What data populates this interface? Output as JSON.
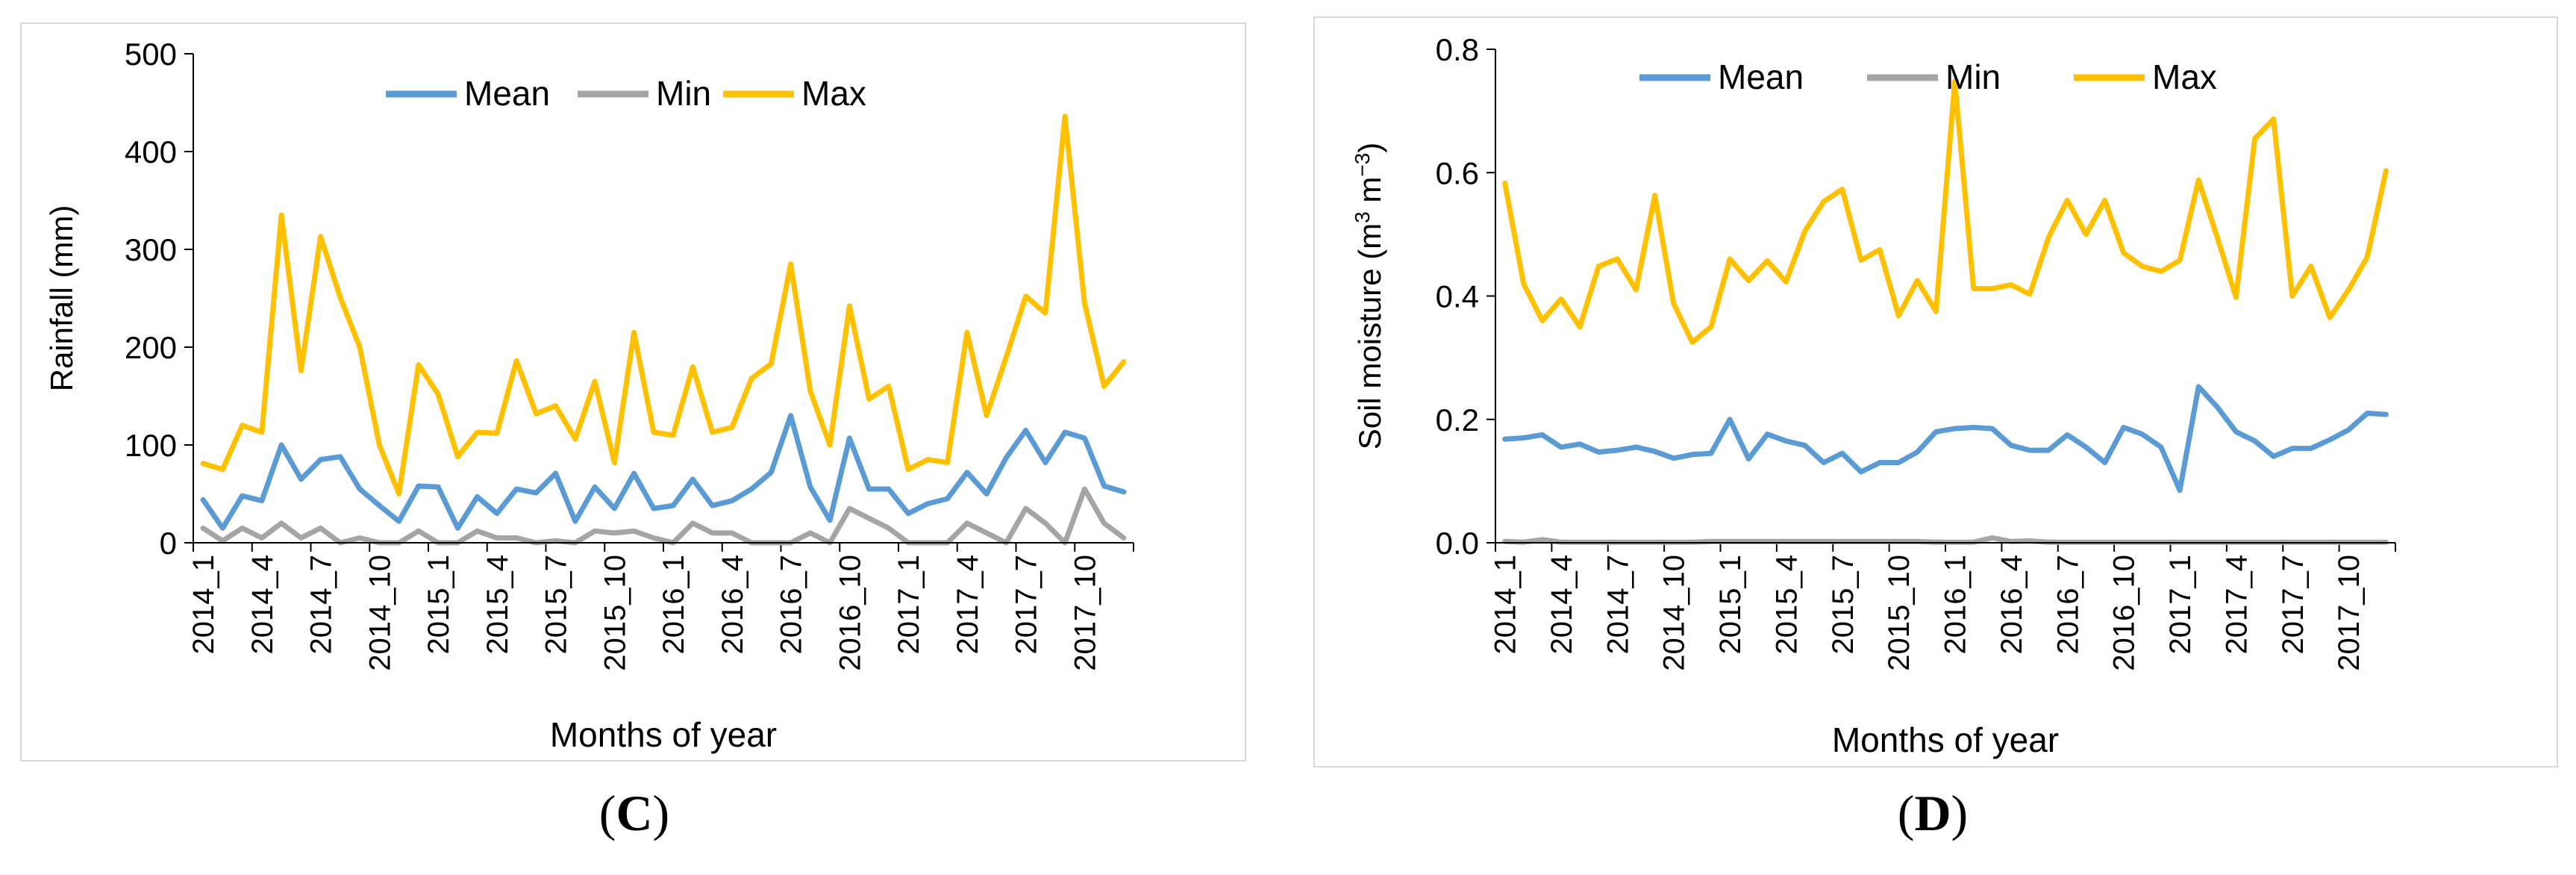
{
  "colors": {
    "mean": "#5B9BD5",
    "min": "#A5A5A5",
    "max": "#FFC000",
    "axis": "#000000"
  },
  "chart_data": [
    {
      "type": "line",
      "panel_caption": {
        "open": "(",
        "letter": "C",
        "close": ")"
      },
      "title": "",
      "xlabel": "Months of year",
      "ylabel": "Rainfall (mm)",
      "ylim": [
        0,
        500
      ],
      "yticks": [
        "0",
        "100",
        "200",
        "300",
        "400",
        "500"
      ],
      "grid": false,
      "legend_position": "top",
      "x_tick_labels": [
        "2014_1",
        "2014_4",
        "2014_7",
        "2014_10",
        "2015_1",
        "2015_4",
        "2015_7",
        "2015_10",
        "2016_1",
        "2016_4",
        "2016_7",
        "2016_10",
        "2017_1",
        "2017_4",
        "2017_7",
        "2017_10"
      ],
      "series": [
        {
          "name": "Mean",
          "color_key": "mean",
          "values": [
            44,
            15,
            48,
            43,
            100,
            65,
            85,
            88,
            55,
            38,
            22,
            58,
            57,
            15,
            47,
            30,
            55,
            51,
            71,
            22,
            57,
            35,
            71,
            35,
            38,
            65,
            38,
            43,
            55,
            72,
            130,
            57,
            23,
            107,
            55,
            55,
            30,
            40,
            45,
            72,
            50,
            87,
            115,
            82,
            113,
            107,
            58,
            52
          ]
        },
        {
          "name": "Min",
          "color_key": "min",
          "values": [
            15,
            2,
            15,
            5,
            20,
            5,
            15,
            0,
            5,
            0,
            0,
            12,
            0,
            0,
            12,
            5,
            5,
            0,
            2,
            0,
            12,
            10,
            12,
            5,
            0,
            20,
            10,
            10,
            0,
            0,
            0,
            10,
            0,
            35,
            25,
            15,
            0,
            0,
            0,
            20,
            10,
            0,
            35,
            20,
            0,
            55,
            20,
            5
          ]
        },
        {
          "name": "Max",
          "color_key": "max",
          "values": [
            81,
            75,
            120,
            113,
            335,
            176,
            313,
            251,
            200,
            100,
            50,
            182,
            152,
            88,
            113,
            112,
            186,
            132,
            140,
            106,
            165,
            82,
            215,
            113,
            110,
            180,
            113,
            118,
            168,
            183,
            285,
            155,
            100,
            242,
            147,
            160,
            75,
            85,
            82,
            215,
            130,
            190,
            252,
            235,
            436,
            245,
            160,
            185
          ]
        }
      ]
    },
    {
      "type": "line",
      "panel_caption": {
        "open": "(",
        "letter": "D",
        "close": ")"
      },
      "title": "",
      "xlabel": "Months of year",
      "ylabel": "Soil moisture (m³ m⁻³)",
      "ylabel_parts": {
        "prefix": "Soil moisture (m",
        "exp1": "3",
        "mid": " m",
        "exp2": "−3",
        "suffix": ")"
      },
      "ylim": [
        0,
        0.8
      ],
      "yticks": [
        "0.0",
        "0.2",
        "0.4",
        "0.6",
        "0.8"
      ],
      "grid": false,
      "legend_position": "top",
      "x_tick_labels": [
        "2014_1",
        "2014_4",
        "2014_7",
        "2014_10",
        "2015_1",
        "2015_4",
        "2015_7",
        "2015_10",
        "2016_1",
        "2016_4",
        "2016_7",
        "2016_10",
        "2017_1",
        "2017_4",
        "2017_7",
        "2017_10"
      ],
      "series": [
        {
          "name": "Mean",
          "color_key": "mean",
          "values": [
            0.168,
            0.17,
            0.175,
            0.155,
            0.16,
            0.147,
            0.15,
            0.155,
            0.148,
            0.137,
            0.143,
            0.145,
            0.2,
            0.136,
            0.176,
            0.165,
            0.158,
            0.13,
            0.145,
            0.115,
            0.13,
            0.13,
            0.147,
            0.18,
            0.185,
            0.187,
            0.185,
            0.158,
            0.15,
            0.15,
            0.175,
            0.155,
            0.13,
            0.187,
            0.176,
            0.155,
            0.085,
            0.253,
            0.22,
            0.18,
            0.165,
            0.14,
            0.153,
            0.153,
            0.167,
            0.183,
            0.21,
            0.208
          ]
        },
        {
          "name": "Min",
          "color_key": "min",
          "values": [
            0.002,
            0.001,
            0.005,
            0.001,
            0.001,
            0.001,
            0.001,
            0.001,
            0.001,
            0.001,
            0.001,
            0.002,
            0.002,
            0.002,
            0.002,
            0.002,
            0.002,
            0.002,
            0.002,
            0.002,
            0.002,
            0.002,
            0.002,
            0.001,
            0.001,
            0.001,
            0.008,
            0.002,
            0.003,
            0.001,
            0.001,
            0.001,
            0.001,
            0.001,
            0.001,
            0.001,
            0.001,
            0.001,
            0.001,
            0.001,
            0.001,
            0.001,
            0.001,
            0.001,
            0.001,
            0.001,
            0.001,
            0.001
          ]
        },
        {
          "name": "Max",
          "color_key": "max",
          "values": [
            0.583,
            0.42,
            0.36,
            0.395,
            0.35,
            0.448,
            0.46,
            0.41,
            0.563,
            0.388,
            0.325,
            0.35,
            0.46,
            0.425,
            0.457,
            0.423,
            0.505,
            0.553,
            0.573,
            0.458,
            0.475,
            0.368,
            0.425,
            0.375,
            0.748,
            0.412,
            0.412,
            0.418,
            0.403,
            0.495,
            0.555,
            0.5,
            0.555,
            0.47,
            0.448,
            0.44,
            0.458,
            0.588,
            0.495,
            0.398,
            0.655,
            0.687,
            0.4,
            0.448,
            0.365,
            0.41,
            0.463,
            0.603
          ]
        }
      ]
    }
  ]
}
